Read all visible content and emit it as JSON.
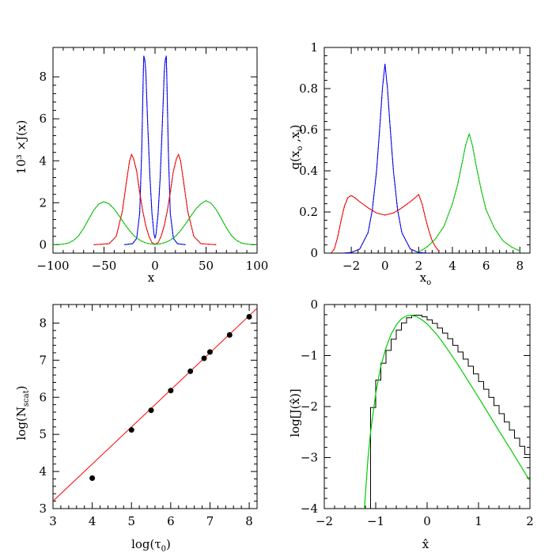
{
  "chart_data": [
    {
      "id": "top-left",
      "type": "line",
      "xlabel": "x",
      "ylabel": "10³ ×J(x)",
      "xlim": [
        -100,
        100
      ],
      "ylim": [
        -0.4,
        9.4
      ],
      "xticks": [
        -100,
        -50,
        0,
        50,
        100
      ],
      "yticks": [
        0,
        2,
        4,
        6,
        8
      ],
      "series": [
        {
          "color": "#0000ff",
          "x": [
            -30,
            -22,
            -18,
            -15,
            -13,
            -11.5,
            -11,
            -10,
            -9,
            -8.5,
            -7,
            -5,
            -3,
            -1,
            0,
            1,
            3,
            5,
            7,
            8.5,
            9,
            10,
            11,
            11.5,
            13,
            15,
            18,
            22,
            30
          ],
          "values": [
            0,
            0.05,
            0.3,
            1.5,
            4.5,
            8.2,
            9.0,
            8.8,
            8.2,
            7.5,
            5.5,
            3.2,
            1.5,
            0.5,
            0.3,
            0.5,
            1.5,
            3.2,
            5.5,
            7.5,
            8.2,
            8.8,
            9.0,
            8.2,
            4.5,
            1.5,
            0.3,
            0.05,
            0
          ]
        },
        {
          "color": "#ff0000",
          "x": [
            -60,
            -45,
            -38,
            -32,
            -28,
            -25,
            -23,
            -21,
            -18,
            -15,
            -12,
            -9,
            -6,
            -3,
            0,
            3,
            6,
            9,
            12,
            15,
            18,
            21,
            23,
            25,
            28,
            32,
            38,
            45,
            60
          ],
          "values": [
            0,
            0.05,
            0.4,
            1.6,
            3.0,
            4.0,
            4.3,
            4.1,
            3.5,
            2.5,
            1.6,
            0.9,
            0.4,
            0.1,
            0.02,
            0.1,
            0.4,
            0.9,
            1.6,
            2.5,
            3.5,
            4.1,
            4.3,
            4.0,
            3.0,
            1.6,
            0.4,
            0.05,
            0
          ]
        },
        {
          "color": "#00cc00",
          "x": [
            -100,
            -95,
            -90,
            -85,
            -80,
            -75,
            -70,
            -65,
            -60,
            -55,
            -50,
            -45,
            -40,
            -35,
            -30,
            -25,
            -20,
            -15,
            -10,
            -5,
            0,
            5,
            10,
            15,
            20,
            25,
            30,
            35,
            40,
            45,
            50,
            55,
            60,
            65,
            70,
            75,
            80,
            85,
            90,
            95,
            100
          ],
          "values": [
            0,
            0.01,
            0.03,
            0.08,
            0.2,
            0.42,
            0.78,
            1.22,
            1.65,
            1.95,
            2.05,
            1.95,
            1.7,
            1.36,
            1.0,
            0.67,
            0.4,
            0.22,
            0.1,
            0.04,
            0.02,
            0.04,
            0.1,
            0.22,
            0.4,
            0.67,
            1.0,
            1.36,
            1.7,
            1.95,
            2.1,
            1.97,
            1.67,
            1.24,
            0.8,
            0.43,
            0.2,
            0.08,
            0.03,
            0.01,
            0
          ]
        }
      ]
    },
    {
      "id": "top-right",
      "type": "line",
      "xlabel": "x_o",
      "ylabel": "q(x_o ,x_i)",
      "xlim": [
        -3.6,
        8.6
      ],
      "ylim": [
        0,
        1
      ],
      "xticks": [
        -2,
        0,
        2,
        4,
        6,
        8
      ],
      "yticks": [
        0,
        0.2,
        0.4,
        0.6,
        0.8,
        1
      ],
      "yticklabels": [
        "0",
        "0.2",
        "0.4",
        "0.6",
        "0.8",
        "1"
      ],
      "series": [
        {
          "color": "#0000ff",
          "x": [
            -2.5,
            -2,
            -1.5,
            -1,
            -0.75,
            -0.5,
            -0.3,
            -0.15,
            0,
            0.15,
            0.3,
            0.5,
            0.75,
            1,
            1.5,
            2,
            2.5
          ],
          "values": [
            0,
            0.003,
            0.02,
            0.1,
            0.21,
            0.4,
            0.62,
            0.8,
            0.92,
            0.8,
            0.62,
            0.4,
            0.21,
            0.1,
            0.02,
            0.003,
            0
          ]
        },
        {
          "color": "#ff0000",
          "x": [
            -3.2,
            -3,
            -2.8,
            -2.6,
            -2.4,
            -2.2,
            -2.0,
            -1.8,
            -1.5,
            -1.0,
            -0.5,
            0,
            0.5,
            1.0,
            1.5,
            1.8,
            2.0,
            2.2,
            2.4,
            2.6,
            2.8,
            3.0,
            3.2
          ],
          "values": [
            0,
            0.02,
            0.08,
            0.16,
            0.23,
            0.27,
            0.28,
            0.27,
            0.25,
            0.22,
            0.195,
            0.185,
            0.195,
            0.22,
            0.25,
            0.27,
            0.285,
            0.24,
            0.17,
            0.11,
            0.06,
            0.03,
            0.01
          ]
        },
        {
          "color": "#00cc00",
          "x": [
            2.0,
            2.5,
            3.0,
            3.5,
            4.0,
            4.3,
            4.6,
            4.8,
            5.0,
            5.2,
            5.4,
            5.7,
            6.0,
            6.5,
            7.0,
            7.5,
            8.0
          ],
          "values": [
            0.005,
            0.03,
            0.07,
            0.13,
            0.24,
            0.33,
            0.45,
            0.53,
            0.58,
            0.52,
            0.43,
            0.31,
            0.21,
            0.12,
            0.06,
            0.03,
            0.01
          ]
        }
      ]
    },
    {
      "id": "bottom-left",
      "type": "scatter",
      "xlabel": "log(τ_0)",
      "ylabel": "log(N_scat)",
      "xlim": [
        3,
        8.2
      ],
      "ylim": [
        3,
        8.5
      ],
      "xticks": [
        3,
        4,
        5,
        6,
        7,
        8
      ],
      "yticks": [
        3,
        4,
        5,
        6,
        7,
        8
      ],
      "points": {
        "x": [
          4,
          5,
          5.5,
          6,
          6.5,
          6.85,
          7,
          7.5,
          8
        ],
        "y": [
          3.82,
          5.12,
          5.65,
          6.18,
          6.7,
          7.05,
          7.22,
          7.68,
          8.17
        ]
      },
      "fit_line": {
        "color": "#ff0000",
        "x": [
          3,
          8.2
        ],
        "values": [
          3.2,
          8.4
        ]
      }
    },
    {
      "id": "bottom-right",
      "type": "line",
      "xlabel": "x̂",
      "ylabel": "log[J(x̂)]",
      "xlim": [
        -2,
        2
      ],
      "ylim": [
        -4,
        0
      ],
      "xticks": [
        -2,
        -1,
        0,
        1,
        2
      ],
      "yticks": [
        -4,
        -3,
        -2,
        -1,
        0
      ],
      "histogram": {
        "color": "#000000",
        "bin_width": 0.1,
        "edges_start": -1.2,
        "values": [
          -4.0,
          -2.02,
          -1.48,
          -1.15,
          -0.9,
          -0.68,
          -0.5,
          -0.36,
          -0.26,
          -0.21,
          -0.21,
          -0.24,
          -0.3,
          -0.37,
          -0.46,
          -0.56,
          -0.67,
          -0.8,
          -0.93,
          -1.07,
          -1.21,
          -1.36,
          -1.51,
          -1.66,
          -1.82,
          -1.98,
          -2.14,
          -2.3,
          -2.46,
          -2.62,
          -2.78,
          -2.94,
          -3.1,
          -3.27,
          -3.44,
          -3.6,
          -3.77,
          -3.93
        ]
      },
      "model": {
        "color": "#00cc00",
        "x": [
          -1.22,
          -1.15,
          -1.1,
          -1.0,
          -0.9,
          -0.8,
          -0.7,
          -0.6,
          -0.5,
          -0.4,
          -0.3,
          -0.2,
          -0.1,
          0,
          0.2,
          0.4,
          0.6,
          0.8,
          1.0,
          1.2,
          1.4,
          1.6,
          1.8,
          2.0
        ],
        "values": [
          -4.0,
          -3.0,
          -2.5,
          -1.75,
          -1.2,
          -0.85,
          -0.58,
          -0.4,
          -0.28,
          -0.22,
          -0.21,
          -0.24,
          -0.3,
          -0.38,
          -0.6,
          -0.88,
          -1.18,
          -1.5,
          -1.82,
          -2.15,
          -2.48,
          -2.8,
          -3.13,
          -3.46
        ]
      }
    }
  ],
  "labels": {
    "tl_xlabel": "x",
    "tl_ylabel": "10³ ×J(x)",
    "tr_xlabel_main": "x",
    "tr_xlabel_sub": "o",
    "tr_ylabel_q": "q(x",
    "tr_ylabel_sub1": "o",
    "tr_ylabel_mid": " ,x",
    "tr_ylabel_sub2": "i",
    "tr_ylabel_end": ")",
    "bl_xlabel_main": "log(τ",
    "bl_xlabel_sub": "0",
    "bl_xlabel_end": ")",
    "bl_ylabel_main": "log(N",
    "bl_ylabel_sub": "scat",
    "bl_ylabel_end": ")",
    "br_xlabel": "x̂",
    "br_ylabel": "log[J(x̂)]"
  }
}
